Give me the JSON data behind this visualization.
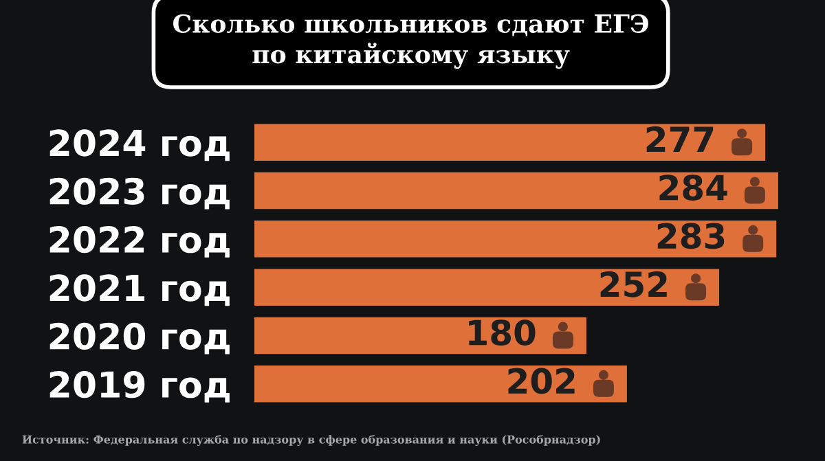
{
  "chart_data": {
    "type": "bar",
    "orientation": "horizontal",
    "title": "Сколько школьников сдают ЕГЭ\nпо китайскому языку",
    "categories": [
      "2024 год",
      "2023 год",
      "2022 год",
      "2021 год",
      "2020 год",
      "2019 год"
    ],
    "values": [
      277,
      284,
      283,
      252,
      180,
      202
    ],
    "color": "#e0703a",
    "data_labels": true,
    "tick_labels": "y",
    "annotations": [
      "Источник: Федеральная служба по надзору в сфере образования и науки (Рособрнадзор)"
    ]
  }
}
